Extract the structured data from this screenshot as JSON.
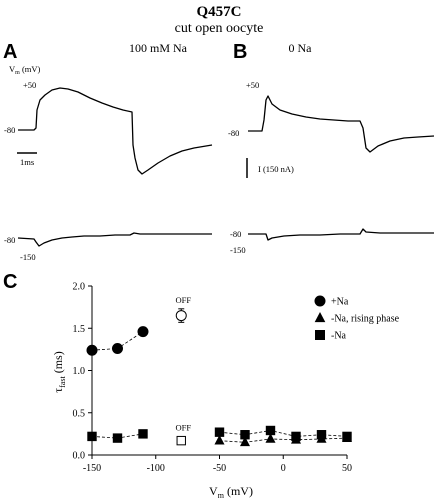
{
  "figure": {
    "title": "Q457C",
    "subtitle": "cut open oocyte",
    "panels": {
      "A": {
        "letter": "A",
        "condition": "100 mM Na",
        "vm_label": "V",
        "vm_sub": "m",
        "vm_unit": " (mV)"
      },
      "B": {
        "letter": "B",
        "condition": "0 Na"
      },
      "C": {
        "letter": "C"
      }
    },
    "trace_labels": {
      "a_top_plus50": "+50",
      "a_top_minus80": "-80",
      "a_bottom_minus80": "-80",
      "a_bottom_minus150": "-150",
      "b_top_plus50": "+50",
      "b_top_minus80": "-80",
      "b_bottom_minus80": "-80",
      "b_bottom_minus150": "-150"
    },
    "scale_bars": {
      "time": "1ms",
      "current": "I (150 nA)"
    }
  },
  "chart_data": {
    "type": "scatter",
    "xlabel_main": "V",
    "xlabel_sub": "m",
    "xlabel_unit": " (mV)",
    "ylabel_main": "τ",
    "ylabel_sub": "fast",
    "ylabel_unit": " (ms)",
    "xlim": [
      -150,
      50
    ],
    "ylim": [
      0,
      2.0
    ],
    "xticks": [
      "-150",
      "-100",
      "-50",
      "0",
      "50"
    ],
    "xtick_values": [
      -150,
      -100,
      -50,
      0,
      50
    ],
    "yticks": [
      "0.0",
      "0.5",
      "1.0",
      "1.5",
      "2.0"
    ],
    "ytick_values": [
      0,
      0.5,
      1.0,
      1.5,
      2.0
    ],
    "legend_position": "top-right",
    "series": [
      {
        "name": "+Na",
        "marker": "circle",
        "filled": true,
        "points": [
          [
            -150,
            1.24
          ],
          [
            -130,
            1.26
          ],
          [
            -110,
            1.46
          ]
        ]
      },
      {
        "name": "-Na, rising phase",
        "marker": "triangle",
        "filled": true,
        "points": [
          [
            -50,
            0.17
          ],
          [
            -30,
            0.15
          ],
          [
            -10,
            0.19
          ],
          [
            10,
            0.18
          ],
          [
            30,
            0.19
          ],
          [
            50,
            0.2
          ]
        ]
      },
      {
        "name": "-Na",
        "marker": "square",
        "filled": true,
        "points": [
          [
            -150,
            0.22
          ],
          [
            -130,
            0.2
          ],
          [
            -110,
            0.25
          ],
          [
            -50,
            0.27
          ],
          [
            -30,
            0.24
          ],
          [
            -10,
            0.29
          ],
          [
            10,
            0.22
          ],
          [
            30,
            0.24
          ],
          [
            50,
            0.22
          ]
        ]
      }
    ],
    "off_points": [
      {
        "label": "OFF",
        "marker": "circle",
        "filled": false,
        "x": -80,
        "y": 1.65,
        "err": 0.08
      },
      {
        "label": "OFF",
        "marker": "square",
        "filled": false,
        "x": -80,
        "y": 0.17,
        "err": 0.0
      }
    ]
  }
}
